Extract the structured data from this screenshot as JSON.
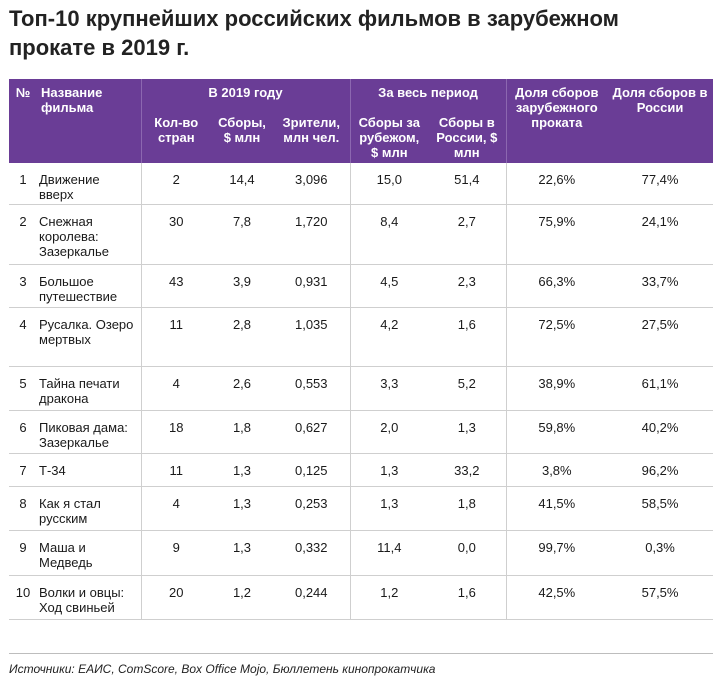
{
  "title": "Топ-10 крупнейших российских фильмов в зарубежном прокате в 2019 г.",
  "header": {
    "num": "№",
    "name": "Название фильма",
    "group_2019": "В 2019 году",
    "group_period": "За весь период",
    "countries": "Кол-во стран",
    "box_2019": "Сборы, $ млн",
    "viewers": "Зрители, млн чел.",
    "box_abroad": "Сборы за рубежом, $ млн",
    "box_russia": "Сборы в России, $ млн",
    "share_abroad": "Доля сборов зарубежного проката",
    "share_russia": "Доля сборов в России"
  },
  "rows": [
    {
      "rank": "1",
      "name": "Движение вверх",
      "countries": "2",
      "box_2019": "14,4",
      "viewers": "3,096",
      "box_abroad": "15,0",
      "box_russia": "51,4",
      "share_abroad": "22,6%",
      "share_russia": "77,4%"
    },
    {
      "rank": "2",
      "name": "Снежная королева: Зазеркалье",
      "countries": "30",
      "box_2019": "7,8",
      "viewers": "1,720",
      "box_abroad": "8,4",
      "box_russia": "2,7",
      "share_abroad": "75,9%",
      "share_russia": "24,1%"
    },
    {
      "rank": "3",
      "name": "Большое путешествие",
      "countries": "43",
      "box_2019": "3,9",
      "viewers": "0,931",
      "box_abroad": "4,5",
      "box_russia": "2,3",
      "share_abroad": "66,3%",
      "share_russia": "33,7%"
    },
    {
      "rank": "4",
      "name": "Русалка. Озеро мертвых",
      "countries": "11",
      "box_2019": "2,8",
      "viewers": "1,035",
      "box_abroad": "4,2",
      "box_russia": "1,6",
      "share_abroad": "72,5%",
      "share_russia": "27,5%"
    },
    {
      "rank": "5",
      "name": "Тайна печати дракона",
      "countries": "4",
      "box_2019": "2,6",
      "viewers": "0,553",
      "box_abroad": "3,3",
      "box_russia": "5,2",
      "share_abroad": "38,9%",
      "share_russia": "61,1%"
    },
    {
      "rank": "6",
      "name": "Пиковая дама: Зазеркалье",
      "countries": "18",
      "box_2019": "1,8",
      "viewers": "0,627",
      "box_abroad": "2,0",
      "box_russia": "1,3",
      "share_abroad": "59,8%",
      "share_russia": "40,2%"
    },
    {
      "rank": "7",
      "name": "Т-34",
      "countries": "11",
      "box_2019": "1,3",
      "viewers": "0,125",
      "box_abroad": "1,3",
      "box_russia": "33,2",
      "share_abroad": "3,8%",
      "share_russia": "96,2%"
    },
    {
      "rank": "8",
      "name": "Как я стал русским",
      "countries": "4",
      "box_2019": "1,3",
      "viewers": "0,253",
      "box_abroad": "1,3",
      "box_russia": "1,8",
      "share_abroad": "41,5%",
      "share_russia": "58,5%"
    },
    {
      "rank": "9",
      "name": "Маша и Медведь",
      "countries": "9",
      "box_2019": "1,3",
      "viewers": "0,332",
      "box_abroad": "11,4",
      "box_russia": "0,0",
      "share_abroad": "99,7%",
      "share_russia": "0,3%"
    },
    {
      "rank": "10",
      "name": "Волки и овцы: Ход свиньей",
      "countries": "20",
      "box_2019": "1,2",
      "viewers": "0,244",
      "box_abroad": "1,2",
      "box_russia": "1,6",
      "share_abroad": "42,5%",
      "share_russia": "57,5%"
    }
  ],
  "source": "Источники: ЕАИС, ComScore, Box Office Mojo, Бюллетень кинопрокатчика"
}
